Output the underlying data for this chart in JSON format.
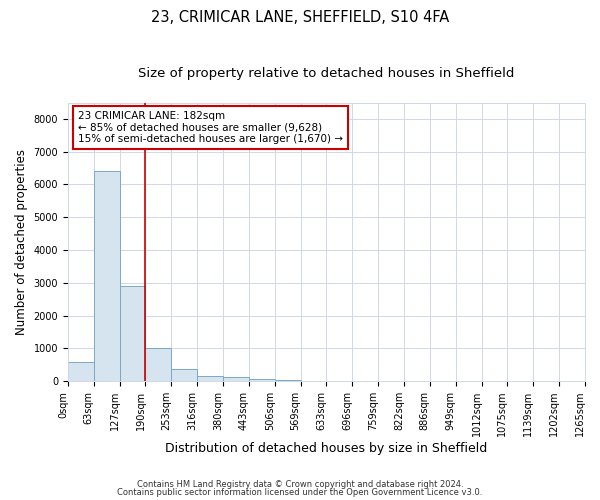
{
  "title": "23, CRIMICAR LANE, SHEFFIELD, S10 4FA",
  "subtitle": "Size of property relative to detached houses in Sheffield",
  "xlabel": "Distribution of detached houses by size in Sheffield",
  "ylabel": "Number of detached properties",
  "bar_values": [
    580,
    6400,
    2900,
    1000,
    380,
    170,
    120,
    70,
    40,
    0,
    0,
    0,
    0,
    0,
    0,
    0,
    0,
    0,
    0,
    0
  ],
  "bar_color": "#d6e4f0",
  "bar_edge_color": "#7aaac8",
  "x_labels": [
    "0sqm",
    "63sqm",
    "127sqm",
    "190sqm",
    "253sqm",
    "316sqm",
    "380sqm",
    "443sqm",
    "506sqm",
    "569sqm",
    "633sqm",
    "696sqm",
    "759sqm",
    "822sqm",
    "886sqm",
    "949sqm",
    "1012sqm",
    "1075sqm",
    "1139sqm",
    "1202sqm",
    "1265sqm"
  ],
  "ylim": [
    0,
    8500
  ],
  "yticks": [
    0,
    1000,
    2000,
    3000,
    4000,
    5000,
    6000,
    7000,
    8000
  ],
  "annotation_title": "23 CRIMICAR LANE: 182sqm",
  "annotation_line1": "← 85% of detached houses are smaller (9,628)",
  "annotation_line2": "15% of semi-detached houses are larger (1,670) →",
  "vline_color": "#cc0000",
  "annotation_box_color": "#ffffff",
  "annotation_box_edge": "#cc0000",
  "footer1": "Contains HM Land Registry data © Crown copyright and database right 2024.",
  "footer2": "Contains public sector information licensed under the Open Government Licence v3.0.",
  "background_color": "#ffffff",
  "grid_color": "#d0d8e8",
  "title_fontsize": 10.5,
  "subtitle_fontsize": 9.5,
  "tick_fontsize": 7,
  "ylabel_fontsize": 8.5,
  "xlabel_fontsize": 9
}
